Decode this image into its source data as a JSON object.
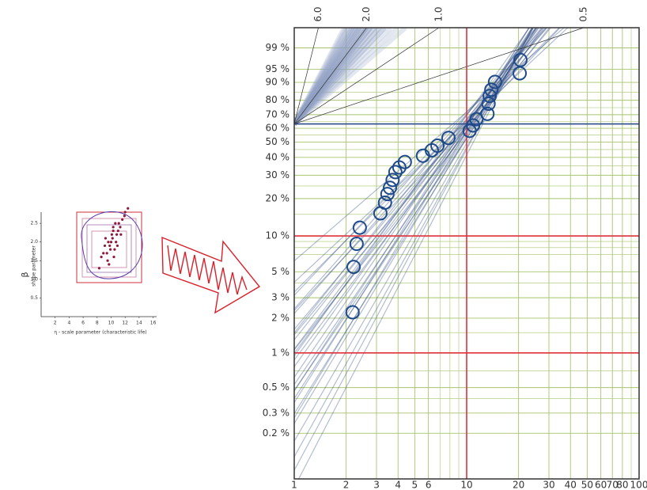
{
  "chart_data": [
    {
      "type": "scatter",
      "x_label": "η - scale parameter (characteristic life)",
      "y_label": "β",
      "y_sublabel": "shape parameter",
      "x": [
        9.2,
        10.5,
        11.3,
        8.6,
        10.1,
        9.8,
        11.9,
        10.7,
        9.5,
        10.3,
        8.9,
        11.1,
        10.0,
        9.7,
        12.4,
        10.8,
        9.1,
        10.4,
        11.6,
        8.3,
        10.2,
        9.9,
        11.0,
        10.6,
        9.4,
        12.0,
        10.9,
        9.6,
        11.4,
        10.3
      ],
      "y": [
        2.1,
        1.8,
        2.4,
        1.6,
        2.2,
        1.9,
        2.7,
        2.0,
        1.5,
        2.3,
        1.7,
        2.5,
        2.0,
        1.4,
        2.9,
        2.2,
        1.9,
        1.6,
        2.6,
        1.3,
        2.1,
        1.8,
        2.3,
        2.5,
        1.7,
        2.8,
        1.9,
        2.0,
        2.2,
        2.4
      ],
      "color": "#8b1a3a",
      "xlim": [
        0,
        16.5
      ],
      "ylim": [
        0,
        2.8
      ],
      "xticks": [
        2,
        4,
        6,
        8,
        10,
        12,
        14,
        16
      ],
      "yticks": [
        0.5,
        {
          "value": 1,
          "label": "1.0"
        },
        1.5,
        {
          "value": 2,
          "label": "2.0"
        },
        2.5
      ]
    },
    {
      "type": "weibull",
      "x": [
        2.18,
        2.21,
        2.3,
        2.4,
        3.16,
        3.36,
        3.47,
        3.59,
        3.72,
        3.86,
        4.07,
        4.38,
        5.58,
        6.28,
        6.77,
        7.84,
        10.4,
        10.9,
        11.4,
        13.2,
        13.4,
        13.6,
        13.9,
        14.6,
        20.3,
        20.5
      ],
      "y": [
        2.25,
        5.5,
        8.6,
        11.7,
        15.3,
        18.6,
        21.7,
        24.2,
        27.7,
        31.6,
        34.1,
        37.2,
        41.0,
        44.5,
        47.6,
        53.0,
        58.1,
        62.1,
        66.7,
        70.6,
        77.7,
        82.7,
        86.3,
        90.2,
        93.7,
        97.3
      ],
      "color": "#1f4a8a",
      "fit_color": "#23407a",
      "xlim": [
        1,
        100
      ],
      "ylim": [
        0.08,
        99.9
      ],
      "log_x": true,
      "xticks": [
        1,
        2,
        3,
        4,
        5,
        6,
        10,
        20,
        30,
        40,
        50,
        60,
        70,
        80,
        100
      ],
      "yticks": [
        {
          "value": 99,
          "label": "99 %"
        },
        {
          "value": 95,
          "label": "95 %"
        },
        {
          "value": 90,
          "label": "90 %"
        },
        {
          "value": 80,
          "label": "80 %"
        },
        {
          "value": 70,
          "label": "70 %"
        },
        {
          "value": 60,
          "label": "60 %"
        },
        {
          "value": 50,
          "label": "50 %"
        },
        {
          "value": 40,
          "label": "40 %"
        },
        {
          "value": 30,
          "label": "30 %"
        },
        {
          "value": 20,
          "label": "20 %"
        },
        {
          "value": 10,
          "label": "10 %"
        },
        {
          "value": 5,
          "label": "5 %"
        },
        {
          "value": 3,
          "label": "3 %"
        },
        {
          "value": 2,
          "label": "2 %"
        },
        {
          "value": 1,
          "label": "1 %"
        },
        {
          "value": 0.5,
          "label": "0.5 %"
        },
        {
          "value": 0.3,
          "label": "0.3 %"
        },
        {
          "value": 0.2,
          "label": "0.2 %"
        }
      ],
      "top_ticks": [
        {
          "value": 6,
          "label": "6.0"
        },
        {
          "value": 2,
          "label": "2.0"
        },
        {
          "value": 1,
          "label": "1.0"
        },
        {
          "value": 0.5,
          "label": "0.5"
        }
      ],
      "xminor": [
        7,
        8,
        9,
        90
      ],
      "yminor": [
        85,
        75,
        65,
        55,
        45,
        35,
        25,
        15,
        9,
        8,
        7,
        4,
        1.5,
        0.7,
        0.4
      ],
      "grid_color": "#a8c46e",
      "ref_color": "#e0303a",
      "ref_x": [
        10
      ],
      "ref_y": [
        10,
        1
      ],
      "char_life": 63.2,
      "char_life_color": "#2a4a8a"
    }
  ]
}
